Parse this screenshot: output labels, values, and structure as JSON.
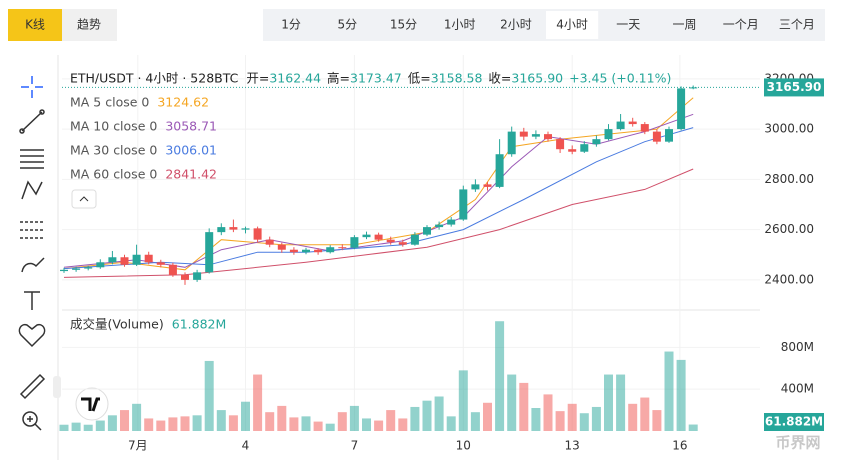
{
  "tabs": [
    "K线",
    "趋势"
  ],
  "intervals": [
    "1分",
    "5分",
    "15分",
    "1小时",
    "2小时",
    "4小时",
    "一天",
    "一周",
    "一个月",
    "三个月"
  ],
  "watermark": "币界网",
  "chart_data": {
    "type": "candlestick",
    "title": "ETH/USDT · 4小时 · 528BTC",
    "ohlc_labels": [
      {
        "label": "开=",
        "value": "3162.44"
      },
      {
        "label": "高=",
        "value": "3173.47"
      },
      {
        "label": "低=",
        "value": "3158.58"
      },
      {
        "label": "收=",
        "value": "3165.90"
      }
    ],
    "change": "+3.45 (+0.11%)",
    "up_color": "#26a69a",
    "down_color": "#ef5350",
    "candles": [
      [
        2435,
        2448,
        2428,
        2440
      ],
      [
        2440,
        2452,
        2432,
        2445
      ],
      [
        2445,
        2456,
        2438,
        2450
      ],
      [
        2450,
        2482,
        2444,
        2470
      ],
      [
        2470,
        2515,
        2462,
        2490
      ],
      [
        2490,
        2500,
        2452,
        2460
      ],
      [
        2460,
        2540,
        2455,
        2500
      ],
      [
        2500,
        2512,
        2462,
        2470
      ],
      [
        2470,
        2480,
        2450,
        2460
      ],
      [
        2460,
        2468,
        2412,
        2420
      ],
      [
        2420,
        2430,
        2380,
        2400
      ],
      [
        2400,
        2440,
        2392,
        2430
      ],
      [
        2430,
        2605,
        2425,
        2590
      ],
      [
        2590,
        2625,
        2578,
        2610
      ],
      [
        2610,
        2640,
        2590,
        2600
      ],
      [
        2600,
        2612,
        2585,
        2605
      ],
      [
        2605,
        2612,
        2550,
        2560
      ],
      [
        2560,
        2572,
        2530,
        2540
      ],
      [
        2540,
        2548,
        2508,
        2520
      ],
      [
        2520,
        2530,
        2500,
        2510
      ],
      [
        2510,
        2528,
        2502,
        2520
      ],
      [
        2520,
        2526,
        2500,
        2510
      ],
      [
        2510,
        2538,
        2505,
        2530
      ],
      [
        2530,
        2542,
        2518,
        2528
      ],
      [
        2528,
        2578,
        2522,
        2570
      ],
      [
        2570,
        2592,
        2562,
        2580
      ],
      [
        2580,
        2588,
        2552,
        2560
      ],
      [
        2560,
        2572,
        2540,
        2550
      ],
      [
        2550,
        2560,
        2532,
        2540
      ],
      [
        2540,
        2590,
        2536,
        2580
      ],
      [
        2580,
        2618,
        2574,
        2610
      ],
      [
        2610,
        2632,
        2600,
        2620
      ],
      [
        2620,
        2650,
        2612,
        2640
      ],
      [
        2640,
        2775,
        2635,
        2760
      ],
      [
        2760,
        2800,
        2750,
        2780
      ],
      [
        2780,
        2790,
        2755,
        2770
      ],
      [
        2770,
        2960,
        2765,
        2900
      ],
      [
        2900,
        3010,
        2890,
        2990
      ],
      [
        2990,
        3005,
        2955,
        2970
      ],
      [
        2970,
        2995,
        2960,
        2980
      ],
      [
        2980,
        2990,
        2950,
        2960
      ],
      [
        2960,
        2968,
        2905,
        2920
      ],
      [
        2920,
        2935,
        2900,
        2910
      ],
      [
        2910,
        2952,
        2905,
        2940
      ],
      [
        2940,
        2975,
        2930,
        2960
      ],
      [
        2960,
        3020,
        2955,
        3000
      ],
      [
        3000,
        3060,
        2995,
        3030
      ],
      [
        3030,
        3045,
        3010,
        3020
      ],
      [
        3020,
        3028,
        2980,
        2990
      ],
      [
        2990,
        3000,
        2940,
        2950
      ],
      [
        2950,
        3010,
        2945,
        3000
      ],
      [
        3000,
        3170,
        2995,
        3162
      ],
      [
        3162.44,
        3173.47,
        3158.58,
        3165.9
      ]
    ],
    "ylim": [
      2300,
      3275
    ],
    "yticks": [
      {
        "value": 2400,
        "label": "2400.00"
      },
      {
        "value": 2600,
        "label": "2600.00"
      },
      {
        "value": 2800,
        "label": "2800.00"
      },
      {
        "value": 3000,
        "label": "3000.00"
      },
      {
        "value": 3200,
        "label": "3200.00"
      }
    ],
    "last_price_label": "3165.90",
    "xticks": [
      {
        "value": 6.1,
        "label": "7月"
      },
      {
        "value": 15,
        "label": "4"
      },
      {
        "value": 24,
        "label": "7"
      },
      {
        "value": 33,
        "label": "10"
      },
      {
        "value": 42,
        "label": "13"
      },
      {
        "value": 50.9,
        "label": "16"
      }
    ],
    "ma_series": [
      {
        "name": "MA 5 close 0",
        "value_label": "3124.62",
        "color": "#f5a623",
        "x": [
          0,
          5,
          10,
          13,
          18,
          24,
          30,
          34,
          37,
          41,
          45,
          49,
          52
        ],
        "values": [
          2445,
          2470,
          2440,
          2560,
          2540,
          2540,
          2590,
          2720,
          2930,
          2960,
          2980,
          3000,
          3124.62
        ]
      },
      {
        "name": "MA 10 close 0",
        "value_label": "3058.71",
        "color": "#9b59b6",
        "x": [
          0,
          6,
          10,
          13,
          17,
          22,
          28,
          33,
          37,
          40,
          44,
          48,
          52
        ],
        "values": [
          2450,
          2480,
          2450,
          2520,
          2560,
          2515,
          2555,
          2650,
          2850,
          2970,
          2940,
          2990,
          3058.71
        ]
      },
      {
        "name": "MA 30 close 0",
        "value_label": "3006.01",
        "color": "#4a7be0",
        "x": [
          0,
          8,
          12,
          16,
          20,
          28,
          33,
          38,
          44,
          48,
          52
        ],
        "values": [
          2445,
          2470,
          2460,
          2510,
          2510,
          2540,
          2600,
          2720,
          2870,
          2950,
          3006.01
        ]
      },
      {
        "name": "MA 60 close 0",
        "value_label": "2841.42",
        "color": "#d0506a",
        "x": [
          0,
          10,
          20,
          30,
          36,
          42,
          48,
          52
        ],
        "values": [
          2410,
          2420,
          2470,
          2530,
          2600,
          2700,
          2760,
          2841.42
        ]
      }
    ],
    "volume": {
      "title": "成交量(Volume)",
      "last_label": "61.882M",
      "values": [
        60,
        80,
        60,
        100,
        150,
        200,
        260,
        120,
        100,
        130,
        140,
        150,
        670,
        200,
        150,
        280,
        540,
        180,
        240,
        130,
        140,
        90,
        70,
        180,
        240,
        120,
        100,
        200,
        120,
        230,
        290,
        330,
        140,
        580,
        180,
        270,
        1050,
        540,
        460,
        220,
        350,
        190,
        260,
        170,
        230,
        540,
        540,
        260,
        320,
        200,
        760,
        680,
        61.882
      ],
      "ylim": [
        0,
        1100
      ],
      "yticks": [
        {
          "value": 400,
          "label": "400M"
        },
        {
          "value": 800,
          "label": "800M"
        }
      ]
    }
  }
}
